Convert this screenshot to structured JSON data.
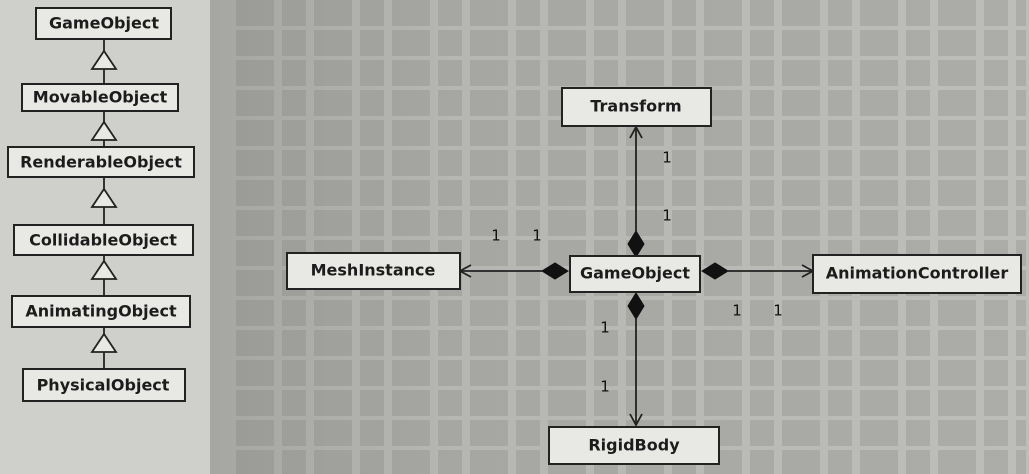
{
  "hierarchy": {
    "classes": [
      "GameObject",
      "MovableObject",
      "RenderableObject",
      "CollidableObject",
      "AnimatingObject",
      "PhysicalObject"
    ]
  },
  "composition": {
    "center": "GameObject",
    "transform": "Transform",
    "mesh": "MeshInstance",
    "animation": "AnimationController",
    "rigid": "RigidBody",
    "multiplicities": {
      "transform_upper": "1",
      "transform_lower": "1",
      "mesh_left": "1",
      "mesh_right": "1",
      "animation_left": "1",
      "animation_right": "1",
      "rigid_upper": "1",
      "rigid_lower": "1"
    }
  }
}
